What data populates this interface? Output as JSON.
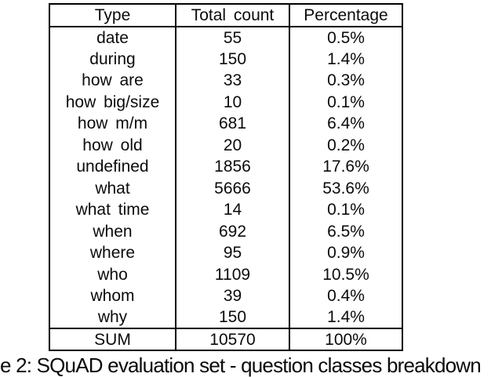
{
  "colors": {
    "background": "#ffffff",
    "text": "#0b0b0b",
    "border": "#000000"
  },
  "table": {
    "headers": [
      "Type",
      "Total count",
      "Percentage"
    ],
    "rows": [
      [
        "date",
        "55",
        "0.5%"
      ],
      [
        "during",
        "150",
        "1.4%"
      ],
      [
        "how are",
        "33",
        "0.3%"
      ],
      [
        "how big/size",
        "10",
        "0.1%"
      ],
      [
        "how m/m",
        "681",
        "6.4%"
      ],
      [
        "how old",
        "20",
        "0.2%"
      ],
      [
        "undefined",
        "1856",
        "17.6%"
      ],
      [
        "what",
        "5666",
        "53.6%"
      ],
      [
        "what time",
        "14",
        "0.1%"
      ],
      [
        "when",
        "692",
        "6.5%"
      ],
      [
        "where",
        "95",
        "0.9%"
      ],
      [
        "who",
        "1109",
        "10.5%"
      ],
      [
        "whom",
        "39",
        "0.4%"
      ],
      [
        "why",
        "150",
        "1.4%"
      ]
    ],
    "footer": [
      "SUM",
      "10570",
      "100%"
    ]
  },
  "caption": "e 2: SQuAD evaluation set - question classes breakdown"
}
